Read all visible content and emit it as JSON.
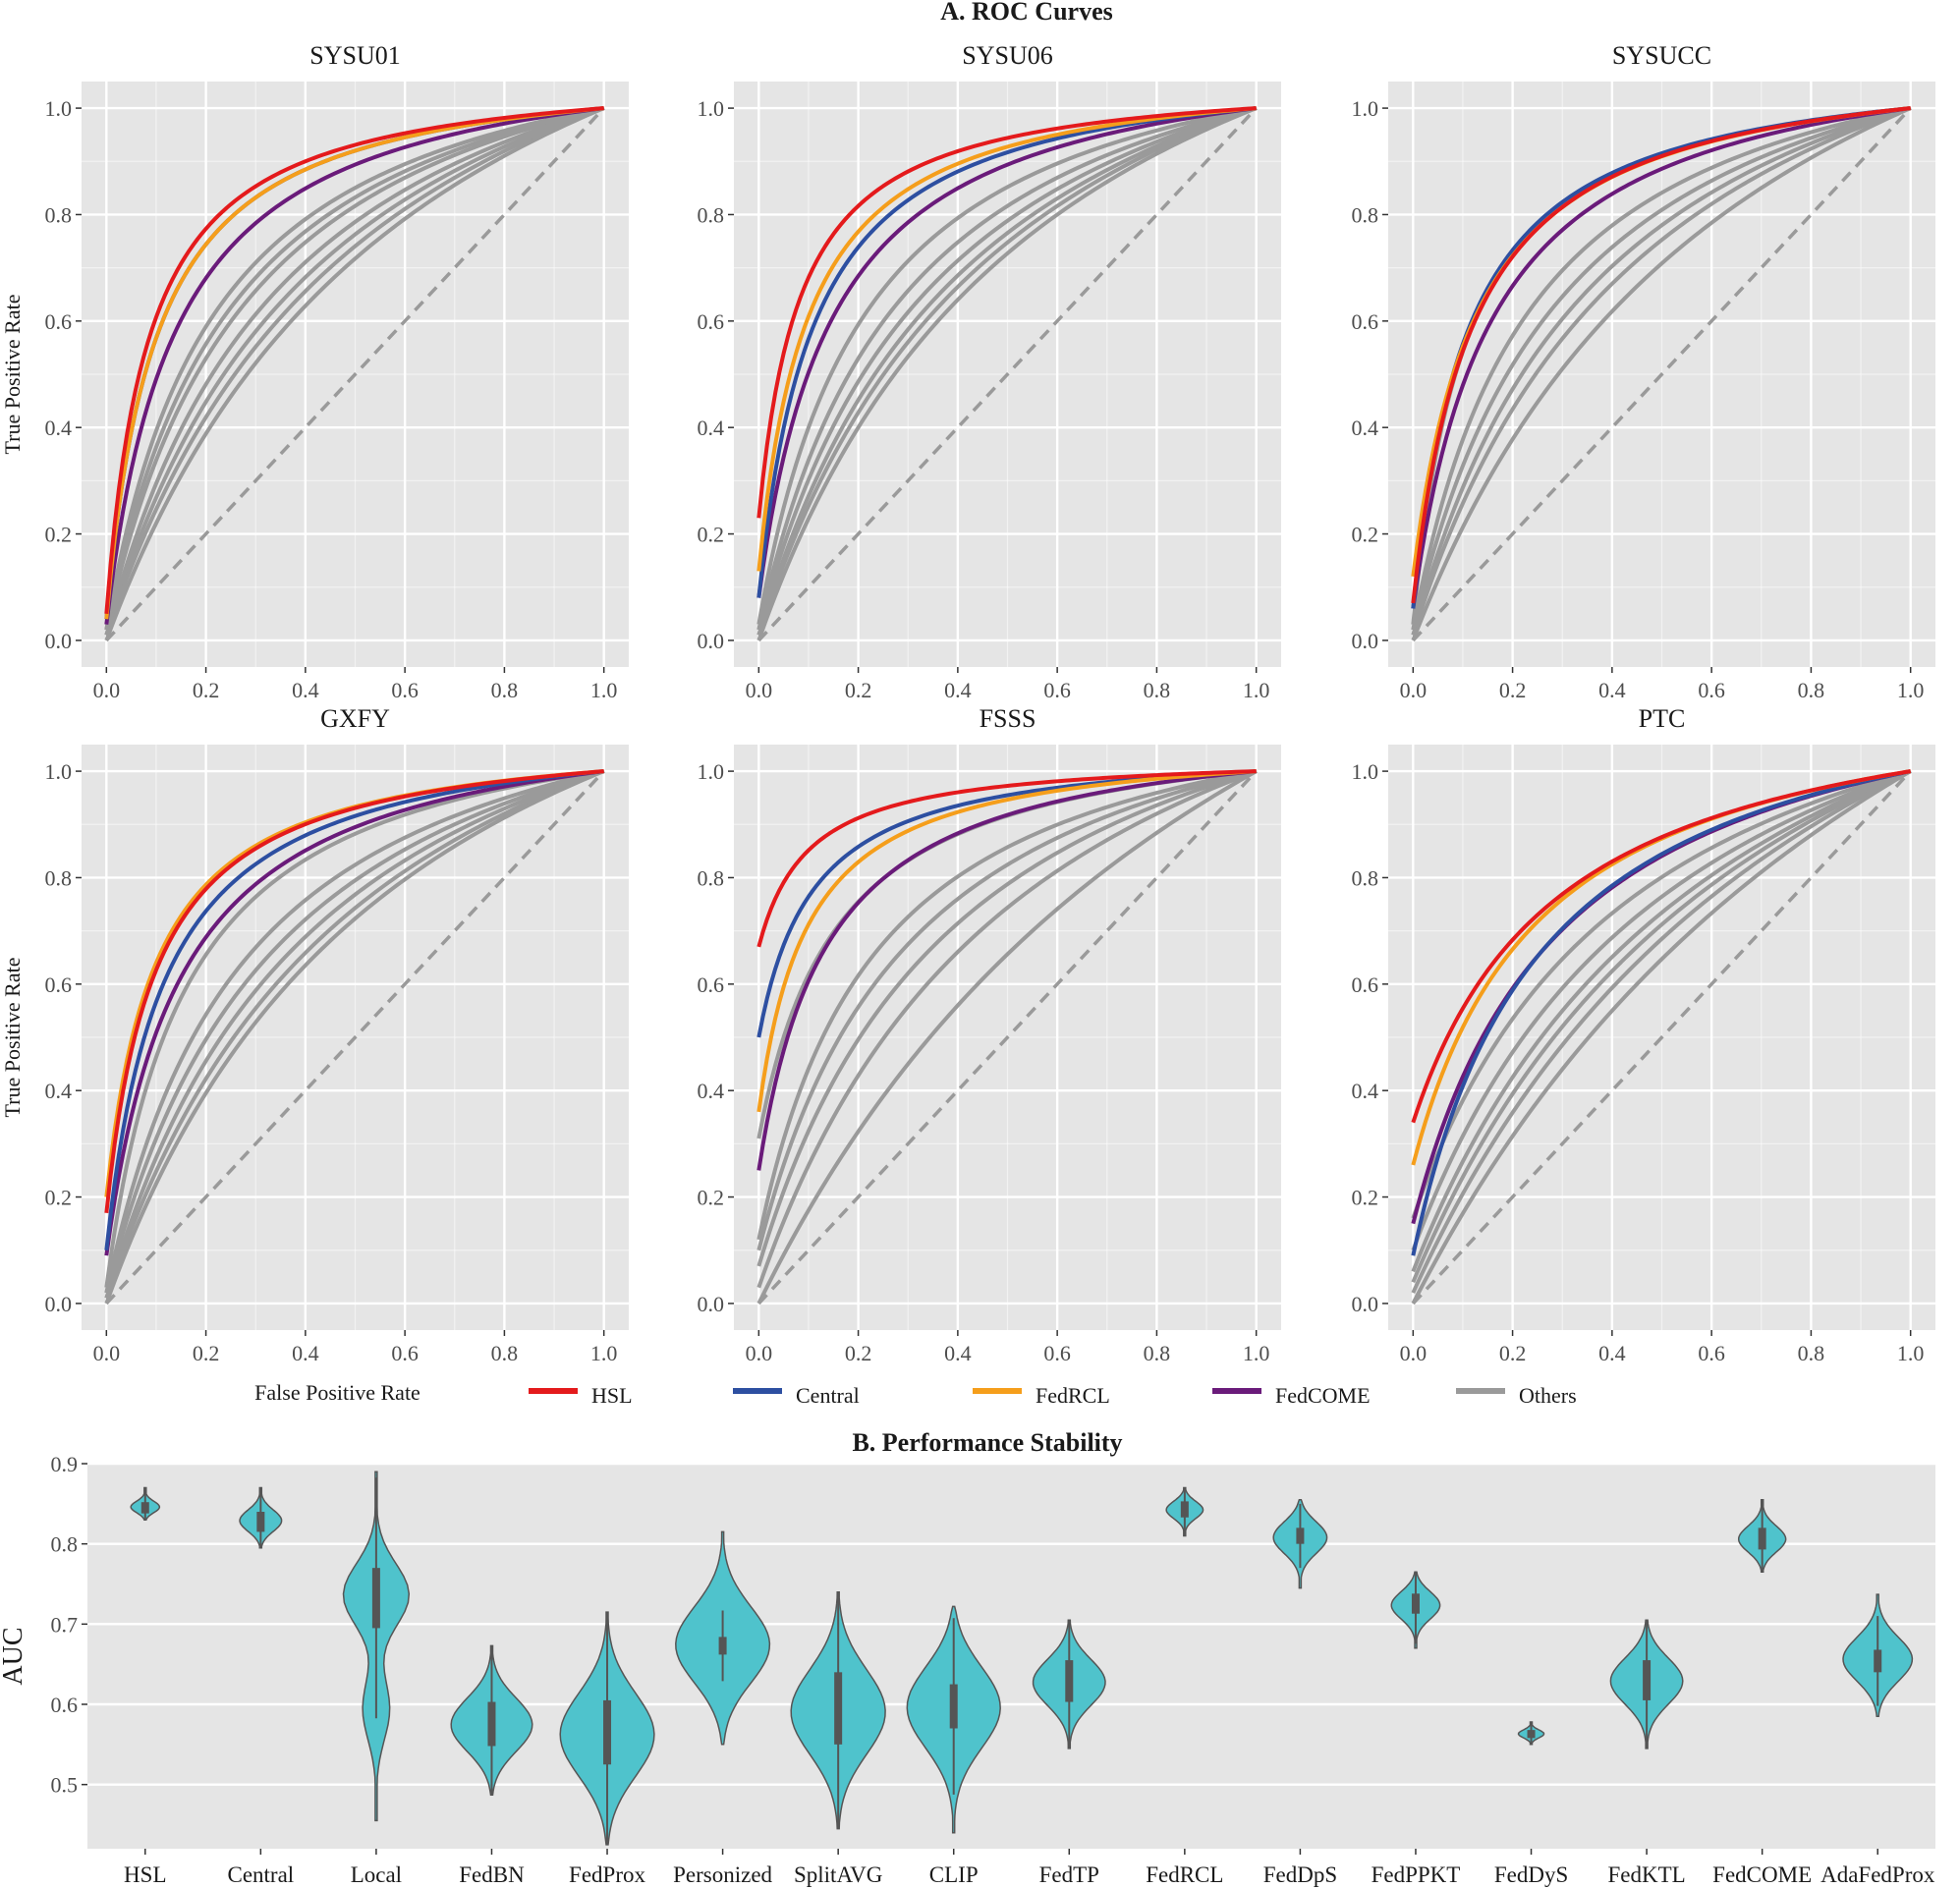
{
  "figure_title_a": "A. ROC Curves",
  "figure_title_b": "B. Performance Stability",
  "colors": {
    "HSL": "#e41a1c",
    "Central": "#2d4fa1",
    "FedRCL": "#f59e1b",
    "FedCOME": "#6a1b7a",
    "Others": "#9a9a9a",
    "violin_fill": "#4fc3cc",
    "panel_bg": "#e5e5e5",
    "grid": "#ffffff"
  },
  "legend": [
    "HSL",
    "Central",
    "FedRCL",
    "FedCOME",
    "Others"
  ],
  "chart_data": [
    {
      "type": "line",
      "title": "SYSU01",
      "xlabel": "False Positive Rate",
      "ylabel": "True Positive Rate",
      "xlim": [
        0,
        1
      ],
      "ylim": [
        0,
        1
      ],
      "xticks": [
        "0.0",
        "0.2",
        "0.4",
        "0.6",
        "0.8",
        "1.0"
      ],
      "yticks": [
        "0.0",
        "0.2",
        "0.4",
        "0.6",
        "0.8",
        "1.0"
      ],
      "series": [
        {
          "name": "HSL",
          "start_tpr": 0.05,
          "shape": 0.085
        },
        {
          "name": "Central",
          "start_tpr": 0.04,
          "shape": 0.1
        },
        {
          "name": "FedRCL",
          "start_tpr": 0.04,
          "shape": 0.1
        },
        {
          "name": "FedCOME",
          "start_tpr": 0.03,
          "shape": 0.14
        },
        {
          "name": "Others",
          "start_tpr": 0.02,
          "shape": 0.22
        },
        {
          "name": "Others",
          "start_tpr": 0.02,
          "shape": 0.3
        },
        {
          "name": "Others",
          "start_tpr": 0.01,
          "shape": 0.38
        },
        {
          "name": "Others",
          "start_tpr": 0.01,
          "shape": 0.46
        },
        {
          "name": "Others",
          "start_tpr": 0.01,
          "shape": 0.55
        },
        {
          "name": "Others",
          "start_tpr": 0.02,
          "shape": 0.26
        },
        {
          "name": "Others",
          "start_tpr": 0.0,
          "shape": 0.65
        }
      ]
    },
    {
      "type": "line",
      "title": "SYSU06",
      "xlabel": "",
      "ylabel": "",
      "xlim": [
        0,
        1
      ],
      "ylim": [
        0,
        1
      ],
      "xticks": [
        "0.0",
        "0.2",
        "0.4",
        "0.6",
        "0.8",
        "1.0"
      ],
      "yticks": [
        "0.0",
        "0.2",
        "0.4",
        "0.6",
        "0.8",
        "1.0"
      ],
      "series": [
        {
          "name": "HSL",
          "start_tpr": 0.23,
          "shape": 0.085
        },
        {
          "name": "Central",
          "start_tpr": 0.08,
          "shape": 0.11
        },
        {
          "name": "FedRCL",
          "start_tpr": 0.13,
          "shape": 0.1
        },
        {
          "name": "FedCOME",
          "start_tpr": 0.08,
          "shape": 0.15
        },
        {
          "name": "Others",
          "start_tpr": 0.03,
          "shape": 0.22
        },
        {
          "name": "Others",
          "start_tpr": 0.02,
          "shape": 0.3
        },
        {
          "name": "Others",
          "start_tpr": 0.02,
          "shape": 0.38
        },
        {
          "name": "Others",
          "start_tpr": 0.01,
          "shape": 0.45
        },
        {
          "name": "Others",
          "start_tpr": 0.01,
          "shape": 0.52
        },
        {
          "name": "Others",
          "start_tpr": 0.0,
          "shape": 0.6
        }
      ]
    },
    {
      "type": "line",
      "title": "SYSUCC",
      "xlabel": "",
      "ylabel": "",
      "xlim": [
        0,
        1
      ],
      "ylim": [
        0,
        1
      ],
      "xticks": [
        "0.0",
        "0.2",
        "0.4",
        "0.6",
        "0.8",
        "1.0"
      ],
      "yticks": [
        "0.0",
        "0.2",
        "0.4",
        "0.6",
        "0.8",
        "1.0"
      ],
      "series": [
        {
          "name": "HSL",
          "start_tpr": 0.07,
          "shape": 0.12
        },
        {
          "name": "Central",
          "start_tpr": 0.06,
          "shape": 0.11
        },
        {
          "name": "FedRCL",
          "start_tpr": 0.12,
          "shape": 0.13
        },
        {
          "name": "FedCOME",
          "start_tpr": 0.06,
          "shape": 0.16
        },
        {
          "name": "Others",
          "start_tpr": 0.03,
          "shape": 0.11
        },
        {
          "name": "Others",
          "start_tpr": 0.02,
          "shape": 0.24
        },
        {
          "name": "Others",
          "start_tpr": 0.02,
          "shape": 0.32
        },
        {
          "name": "Others",
          "start_tpr": 0.01,
          "shape": 0.4
        },
        {
          "name": "Others",
          "start_tpr": 0.01,
          "shape": 0.5
        },
        {
          "name": "Others",
          "start_tpr": 0.0,
          "shape": 0.7
        }
      ]
    },
    {
      "type": "line",
      "title": "GXFY",
      "xlabel": "",
      "ylabel": "True Positive Rate",
      "xlim": [
        0,
        1
      ],
      "ylim": [
        0,
        1
      ],
      "xticks": [
        "0.0",
        "0.2",
        "0.4",
        "0.6",
        "0.8",
        "1.0"
      ],
      "yticks": [
        "0.0",
        "0.2",
        "0.4",
        "0.6",
        "0.8",
        "1.0"
      ],
      "series": [
        {
          "name": "HSL",
          "start_tpr": 0.17,
          "shape": 0.1
        },
        {
          "name": "Central",
          "start_tpr": 0.1,
          "shape": 0.115
        },
        {
          "name": "FedRCL",
          "start_tpr": 0.2,
          "shape": 0.1
        },
        {
          "name": "FedCOME",
          "start_tpr": 0.09,
          "shape": 0.15
        },
        {
          "name": "Others",
          "start_tpr": 0.03,
          "shape": 0.16
        },
        {
          "name": "Others",
          "start_tpr": 0.02,
          "shape": 0.28
        },
        {
          "name": "Others",
          "start_tpr": 0.02,
          "shape": 0.36
        },
        {
          "name": "Others",
          "start_tpr": 0.01,
          "shape": 0.44
        },
        {
          "name": "Others",
          "start_tpr": 0.01,
          "shape": 0.54
        },
        {
          "name": "Others",
          "start_tpr": 0.0,
          "shape": 0.62
        }
      ]
    },
    {
      "type": "line",
      "title": "FSSS",
      "xlabel": "",
      "ylabel": "",
      "xlim": [
        0,
        1
      ],
      "ylim": [
        0,
        1
      ],
      "xticks": [
        "0.0",
        "0.2",
        "0.4",
        "0.6",
        "0.8",
        "1.0"
      ],
      "yticks": [
        "0.0",
        "0.2",
        "0.4",
        "0.6",
        "0.8",
        "1.0"
      ],
      "series": [
        {
          "name": "HSL",
          "start_tpr": 0.67,
          "shape": 0.1
        },
        {
          "name": "Central",
          "start_tpr": 0.5,
          "shape": 0.11
        },
        {
          "name": "FedRCL",
          "start_tpr": 0.36,
          "shape": 0.1
        },
        {
          "name": "FedCOME",
          "start_tpr": 0.25,
          "shape": 0.14
        },
        {
          "name": "Others",
          "start_tpr": 0.31,
          "shape": 0.16
        },
        {
          "name": "Others",
          "start_tpr": 0.12,
          "shape": 0.24
        },
        {
          "name": "Others",
          "start_tpr": 0.1,
          "shape": 0.32
        },
        {
          "name": "Others",
          "start_tpr": 0.07,
          "shape": 0.42
        },
        {
          "name": "Others",
          "start_tpr": 0.03,
          "shape": 0.56
        },
        {
          "name": "Others",
          "start_tpr": 0.0,
          "shape": 1.1
        }
      ]
    },
    {
      "type": "line",
      "title": "PTC",
      "xlabel": "",
      "ylabel": "",
      "xlim": [
        0,
        1
      ],
      "ylim": [
        0,
        1
      ],
      "xticks": [
        "0.0",
        "0.2",
        "0.4",
        "0.6",
        "0.8",
        "1.0"
      ],
      "yticks": [
        "0.0",
        "0.2",
        "0.4",
        "0.6",
        "0.8",
        "1.0"
      ],
      "series": [
        {
          "name": "HSL",
          "start_tpr": 0.34,
          "shape": 0.3
        },
        {
          "name": "Central",
          "start_tpr": 0.09,
          "shape": 0.26
        },
        {
          "name": "FedRCL",
          "start_tpr": 0.26,
          "shape": 0.26
        },
        {
          "name": "FedCOME",
          "start_tpr": 0.15,
          "shape": 0.3
        },
        {
          "name": "Others",
          "start_tpr": 0.16,
          "shape": 0.45
        },
        {
          "name": "Others",
          "start_tpr": 0.1,
          "shape": 0.55
        },
        {
          "name": "Others",
          "start_tpr": 0.06,
          "shape": 0.65
        },
        {
          "name": "Others",
          "start_tpr": 0.04,
          "shape": 0.75
        },
        {
          "name": "Others",
          "start_tpr": 0.02,
          "shape": 0.9
        },
        {
          "name": "Others",
          "start_tpr": 0.0,
          "shape": 1.2
        }
      ]
    },
    {
      "type": "violin",
      "title": "B. Performance Stability",
      "xlabel": "",
      "ylabel": "AUC",
      "ylim": [
        0.42,
        0.9
      ],
      "yticks": [
        "0.5",
        "0.6",
        "0.7",
        "0.8",
        "0.9"
      ],
      "categories": [
        "HSL",
        "Central",
        "Local",
        "FedBN",
        "FedProx",
        "Personized",
        "SplitAVG",
        "CLIP",
        "FedTP",
        "FedRCL",
        "FedDpS",
        "FedPPKT",
        "FedDyS",
        "FedKTL",
        "FedCOME",
        "AdaFedProx"
      ],
      "series": [
        {
          "name": "HSL",
          "min": 0.83,
          "max": 0.87,
          "q1": 0.838,
          "median": 0.845,
          "q3": 0.852
        },
        {
          "name": "Central",
          "min": 0.795,
          "max": 0.87,
          "q1": 0.815,
          "median": 0.828,
          "q3": 0.84
        },
        {
          "name": "Local",
          "min": 0.455,
          "max": 0.89,
          "q1": 0.695,
          "median": 0.74,
          "q3": 0.77
        },
        {
          "name": "FedBN",
          "min": 0.487,
          "max": 0.673,
          "q1": 0.548,
          "median": 0.573,
          "q3": 0.603
        },
        {
          "name": "FedProx",
          "min": 0.425,
          "max": 0.715,
          "q1": 0.525,
          "median": 0.56,
          "q3": 0.605
        },
        {
          "name": "Personized",
          "min": 0.55,
          "max": 0.815,
          "q1": 0.662,
          "median": 0.672,
          "q3": 0.684
        },
        {
          "name": "SplitAVG",
          "min": 0.445,
          "max": 0.74,
          "q1": 0.55,
          "median": 0.59,
          "q3": 0.64
        },
        {
          "name": "CLIP",
          "min": 0.44,
          "max": 0.722,
          "q1": 0.57,
          "median": 0.6,
          "q3": 0.625
        },
        {
          "name": "FedTP",
          "min": 0.545,
          "max": 0.705,
          "q1": 0.603,
          "median": 0.628,
          "q3": 0.655
        },
        {
          "name": "FedRCL",
          "min": 0.81,
          "max": 0.87,
          "q1": 0.833,
          "median": 0.843,
          "q3": 0.853
        },
        {
          "name": "FedDpS",
          "min": 0.745,
          "max": 0.855,
          "q1": 0.8,
          "median": 0.81,
          "q3": 0.82
        },
        {
          "name": "FedPPKT",
          "min": 0.67,
          "max": 0.765,
          "q1": 0.713,
          "median": 0.725,
          "q3": 0.738
        },
        {
          "name": "FedDyS",
          "min": 0.55,
          "max": 0.578,
          "q1": 0.558,
          "median": 0.563,
          "q3": 0.568
        },
        {
          "name": "FedKTL",
          "min": 0.545,
          "max": 0.705,
          "q1": 0.605,
          "median": 0.63,
          "q3": 0.655
        },
        {
          "name": "FedCOME",
          "min": 0.765,
          "max": 0.855,
          "q1": 0.793,
          "median": 0.805,
          "q3": 0.82
        },
        {
          "name": "AdaFedProx",
          "min": 0.585,
          "max": 0.737,
          "q1": 0.64,
          "median": 0.655,
          "q3": 0.668
        }
      ]
    }
  ]
}
